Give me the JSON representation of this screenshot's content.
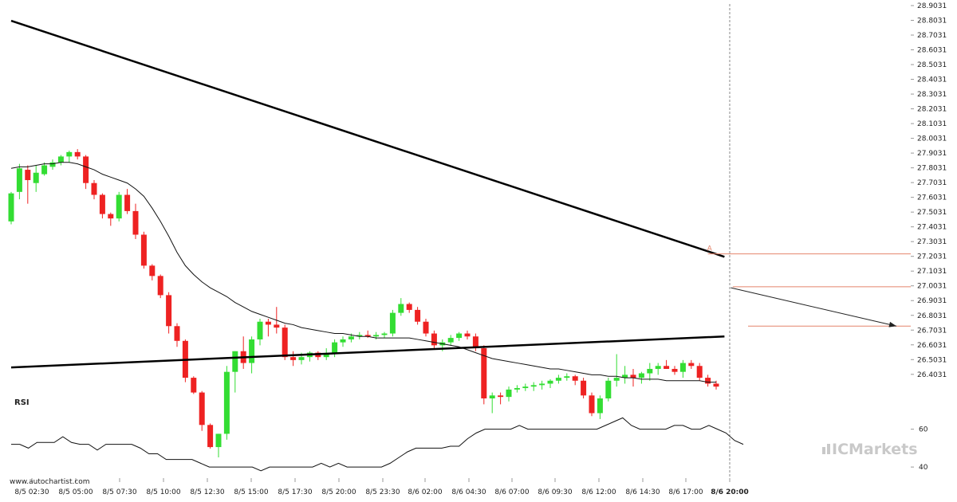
{
  "chart_data": {
    "type": "candlestick",
    "source": "www.autochartist.com",
    "brand": "ICMarkets",
    "price_axis": {
      "range": [
        26.3831,
        28.9031
      ],
      "ticks": [
        "28.9031",
        "28.8031",
        "28.7031",
        "28.6031",
        "28.5031",
        "28.4031",
        "28.3031",
        "28.2031",
        "28.1031",
        "28.0031",
        "27.9031",
        "27.8031",
        "27.7031",
        "27.6031",
        "27.5031",
        "27.4031",
        "27.3031",
        "27.2031",
        "27.1031",
        "27.0031",
        "26.9031",
        "26.8031",
        "26.7031",
        "26.6031",
        "26.5031",
        "26.4031"
      ]
    },
    "time_axis": {
      "ticks": [
        "8/5 02:30",
        "8/5 05:00",
        "8/5 07:30",
        "8/5 10:00",
        "8/5 12:30",
        "8/5 15:00",
        "8/5 17:30",
        "8/5 20:00",
        "8/5 23:30",
        "8/6 02:00",
        "8/6 04:30",
        "8/6 07:00",
        "8/6 09:30",
        "8/6 12:00",
        "8/6 14:30",
        "8/6 17:00",
        "8/6 20:00"
      ],
      "current": "8/6 20:00"
    },
    "candles": [
      [
        27.18,
        27.38,
        27.16,
        27.37
      ],
      [
        27.38,
        27.57,
        27.33,
        27.54
      ],
      [
        27.53,
        27.56,
        27.3,
        27.46
      ],
      [
        27.44,
        27.56,
        27.38,
        27.51
      ],
      [
        27.5,
        27.58,
        27.49,
        27.56
      ],
      [
        27.55,
        27.6,
        27.53,
        27.58
      ],
      [
        27.58,
        27.63,
        27.56,
        27.62
      ],
      [
        27.62,
        27.66,
        27.58,
        27.65
      ],
      [
        27.65,
        27.67,
        27.6,
        27.62
      ],
      [
        27.62,
        27.63,
        27.4,
        27.44
      ],
      [
        27.44,
        27.46,
        27.33,
        27.36
      ],
      [
        27.36,
        27.37,
        27.2,
        27.23
      ],
      [
        27.23,
        27.24,
        27.15,
        27.2
      ],
      [
        27.2,
        27.38,
        27.18,
        27.36
      ],
      [
        27.36,
        27.4,
        27.23,
        27.25
      ],
      [
        27.25,
        27.3,
        27.06,
        27.09
      ],
      [
        27.09,
        27.11,
        26.86,
        26.88
      ],
      [
        26.88,
        26.89,
        26.78,
        26.81
      ],
      [
        26.81,
        26.82,
        26.66,
        26.68
      ],
      [
        26.68,
        26.7,
        26.42,
        26.47
      ],
      [
        26.47,
        26.49,
        26.33,
        26.37
      ],
      [
        26.37,
        26.38,
        26.09,
        26.12
      ],
      [
        26.12,
        26.13,
        26.01,
        26.02
      ],
      [
        26.02,
        26.03,
        25.76,
        25.8
      ],
      [
        25.8,
        25.81,
        25.64,
        25.65
      ],
      [
        25.65,
        25.74,
        25.58,
        25.74
      ],
      [
        25.74,
        26.2,
        25.7,
        26.16
      ],
      [
        26.16,
        26.3,
        26.02,
        26.3
      ],
      [
        26.3,
        26.4,
        26.18,
        26.22
      ],
      [
        26.22,
        26.4,
        26.15,
        26.38
      ],
      [
        26.38,
        26.52,
        26.34,
        26.5
      ],
      [
        26.5,
        26.52,
        26.4,
        26.48
      ],
      [
        26.48,
        26.6,
        26.42,
        26.46
      ],
      [
        26.46,
        26.48,
        26.24,
        26.26
      ],
      [
        26.26,
        26.3,
        26.2,
        26.24
      ],
      [
        26.24,
        26.29,
        26.21,
        26.26
      ],
      [
        26.26,
        26.3,
        26.23,
        26.29
      ],
      [
        26.29,
        26.3,
        26.24,
        26.26
      ],
      [
        26.26,
        26.32,
        26.24,
        26.28
      ],
      [
        26.28,
        26.38,
        26.26,
        26.36
      ],
      [
        26.36,
        26.4,
        26.33,
        26.38
      ],
      [
        26.38,
        26.42,
        26.36,
        26.4
      ],
      [
        26.4,
        26.43,
        26.38,
        26.41
      ],
      [
        26.41,
        26.44,
        26.39,
        26.4
      ],
      [
        26.4,
        26.43,
        26.38,
        26.41
      ],
      [
        26.41,
        26.43,
        26.39,
        26.42
      ],
      [
        26.42,
        26.58,
        26.4,
        26.56
      ],
      [
        26.56,
        26.66,
        26.54,
        26.62
      ],
      [
        26.62,
        26.63,
        26.56,
        26.58
      ],
      [
        26.58,
        26.6,
        26.48,
        26.5
      ],
      [
        26.5,
        26.52,
        26.4,
        26.42
      ],
      [
        26.42,
        26.44,
        26.32,
        26.34
      ],
      [
        26.34,
        26.38,
        26.3,
        26.36
      ],
      [
        26.36,
        26.41,
        26.34,
        26.39
      ],
      [
        26.39,
        26.43,
        26.37,
        26.42
      ],
      [
        26.42,
        26.44,
        26.38,
        26.4
      ],
      [
        26.4,
        26.42,
        26.3,
        26.32
      ],
      [
        26.32,
        26.34,
        25.94,
        25.98
      ],
      [
        25.98,
        26.02,
        25.88,
        26.0
      ],
      [
        26.0,
        26.02,
        25.94,
        25.99
      ],
      [
        25.99,
        26.06,
        25.96,
        26.04
      ],
      [
        26.04,
        26.07,
        26.02,
        26.05
      ],
      [
        26.05,
        26.08,
        26.03,
        26.06
      ],
      [
        26.06,
        26.09,
        26.03,
        26.07
      ],
      [
        26.07,
        26.1,
        26.04,
        26.08
      ],
      [
        26.08,
        26.11,
        26.05,
        26.1
      ],
      [
        26.1,
        26.14,
        26.08,
        26.12
      ],
      [
        26.12,
        26.15,
        26.1,
        26.13
      ],
      [
        26.13,
        26.14,
        26.07,
        26.1
      ],
      [
        26.1,
        26.12,
        25.98,
        26.0
      ],
      [
        26.0,
        26.02,
        25.86,
        25.88
      ],
      [
        25.88,
        26.0,
        25.84,
        25.98
      ],
      [
        25.98,
        26.12,
        25.96,
        26.1
      ],
      [
        26.1,
        26.28,
        26.06,
        26.12
      ],
      [
        26.12,
        26.2,
        26.08,
        26.14
      ],
      [
        26.14,
        26.18,
        26.06,
        26.12
      ],
      [
        26.12,
        26.16,
        26.08,
        26.15
      ],
      [
        26.15,
        26.22,
        26.1,
        26.18
      ],
      [
        26.18,
        26.22,
        26.14,
        26.2
      ],
      [
        26.2,
        26.24,
        26.18,
        26.18
      ],
      [
        26.18,
        26.2,
        26.14,
        26.16
      ],
      [
        26.16,
        26.24,
        26.12,
        26.22
      ],
      [
        26.22,
        26.24,
        26.18,
        26.2
      ],
      [
        26.2,
        26.22,
        26.1,
        26.12
      ],
      [
        26.12,
        26.14,
        26.06,
        26.08
      ],
      [
        26.08,
        26.1,
        26.04,
        26.06
      ]
    ],
    "ma": [
      27.54,
      27.55,
      27.55,
      27.56,
      27.57,
      27.57,
      27.58,
      27.58,
      27.57,
      27.55,
      27.53,
      27.5,
      27.48,
      27.46,
      27.44,
      27.4,
      27.35,
      27.27,
      27.18,
      27.08,
      26.97,
      26.88,
      26.82,
      26.77,
      26.73,
      26.7,
      26.67,
      26.63,
      26.6,
      26.57,
      26.55,
      26.53,
      26.51,
      26.49,
      26.48,
      26.46,
      26.45,
      26.44,
      26.43,
      26.42,
      26.42,
      26.41,
      26.4,
      26.4,
      26.39,
      26.39,
      26.39,
      26.39,
      26.39,
      26.38,
      26.37,
      26.36,
      26.35,
      26.34,
      26.33,
      26.31,
      26.29,
      26.27,
      26.25,
      26.24,
      26.23,
      26.22,
      26.21,
      26.2,
      26.19,
      26.18,
      26.18,
      26.17,
      26.16,
      26.15,
      26.14,
      26.14,
      26.13,
      26.13,
      26.12,
      26.12,
      26.11,
      26.11,
      26.11,
      26.1,
      26.1,
      26.1,
      26.1,
      26.1,
      26.09,
      26.09
    ],
    "pattern": {
      "type": "triangle",
      "upper": [
        [
          0,
          28.8
        ],
        [
          86,
          27.2
        ]
      ],
      "lower": [
        [
          0,
          26.45
        ],
        [
          86,
          26.66
        ]
      ],
      "projection": [
        [
          86,
          26.99
        ],
        [
          106,
          26.73
        ]
      ],
      "breakout_label": "A",
      "level_high": 27.22,
      "level_mid": 26.997,
      "level_target": 26.73
    },
    "rsi": {
      "label": "RSI",
      "ticks": [
        "60",
        "40"
      ],
      "range": [
        35,
        75
      ],
      "values": [
        52,
        52,
        50,
        53,
        53,
        53,
        56,
        53,
        52,
        52,
        49,
        52,
        52,
        52,
        52,
        50,
        47,
        47,
        44,
        44,
        44,
        44,
        42,
        40,
        40,
        40,
        40,
        40,
        40,
        38,
        40,
        40,
        40,
        40,
        40,
        40,
        42,
        40,
        42,
        40,
        40,
        40,
        40,
        40,
        42,
        45,
        48,
        50,
        50,
        50,
        50,
        51,
        51,
        55,
        58,
        60,
        60,
        60,
        60,
        62,
        60,
        60,
        60,
        60,
        60,
        60,
        60,
        60,
        60,
        62,
        64,
        66,
        62,
        60,
        60,
        60,
        60,
        62,
        62,
        60,
        60,
        62,
        60,
        58,
        54,
        52
      ]
    }
  }
}
